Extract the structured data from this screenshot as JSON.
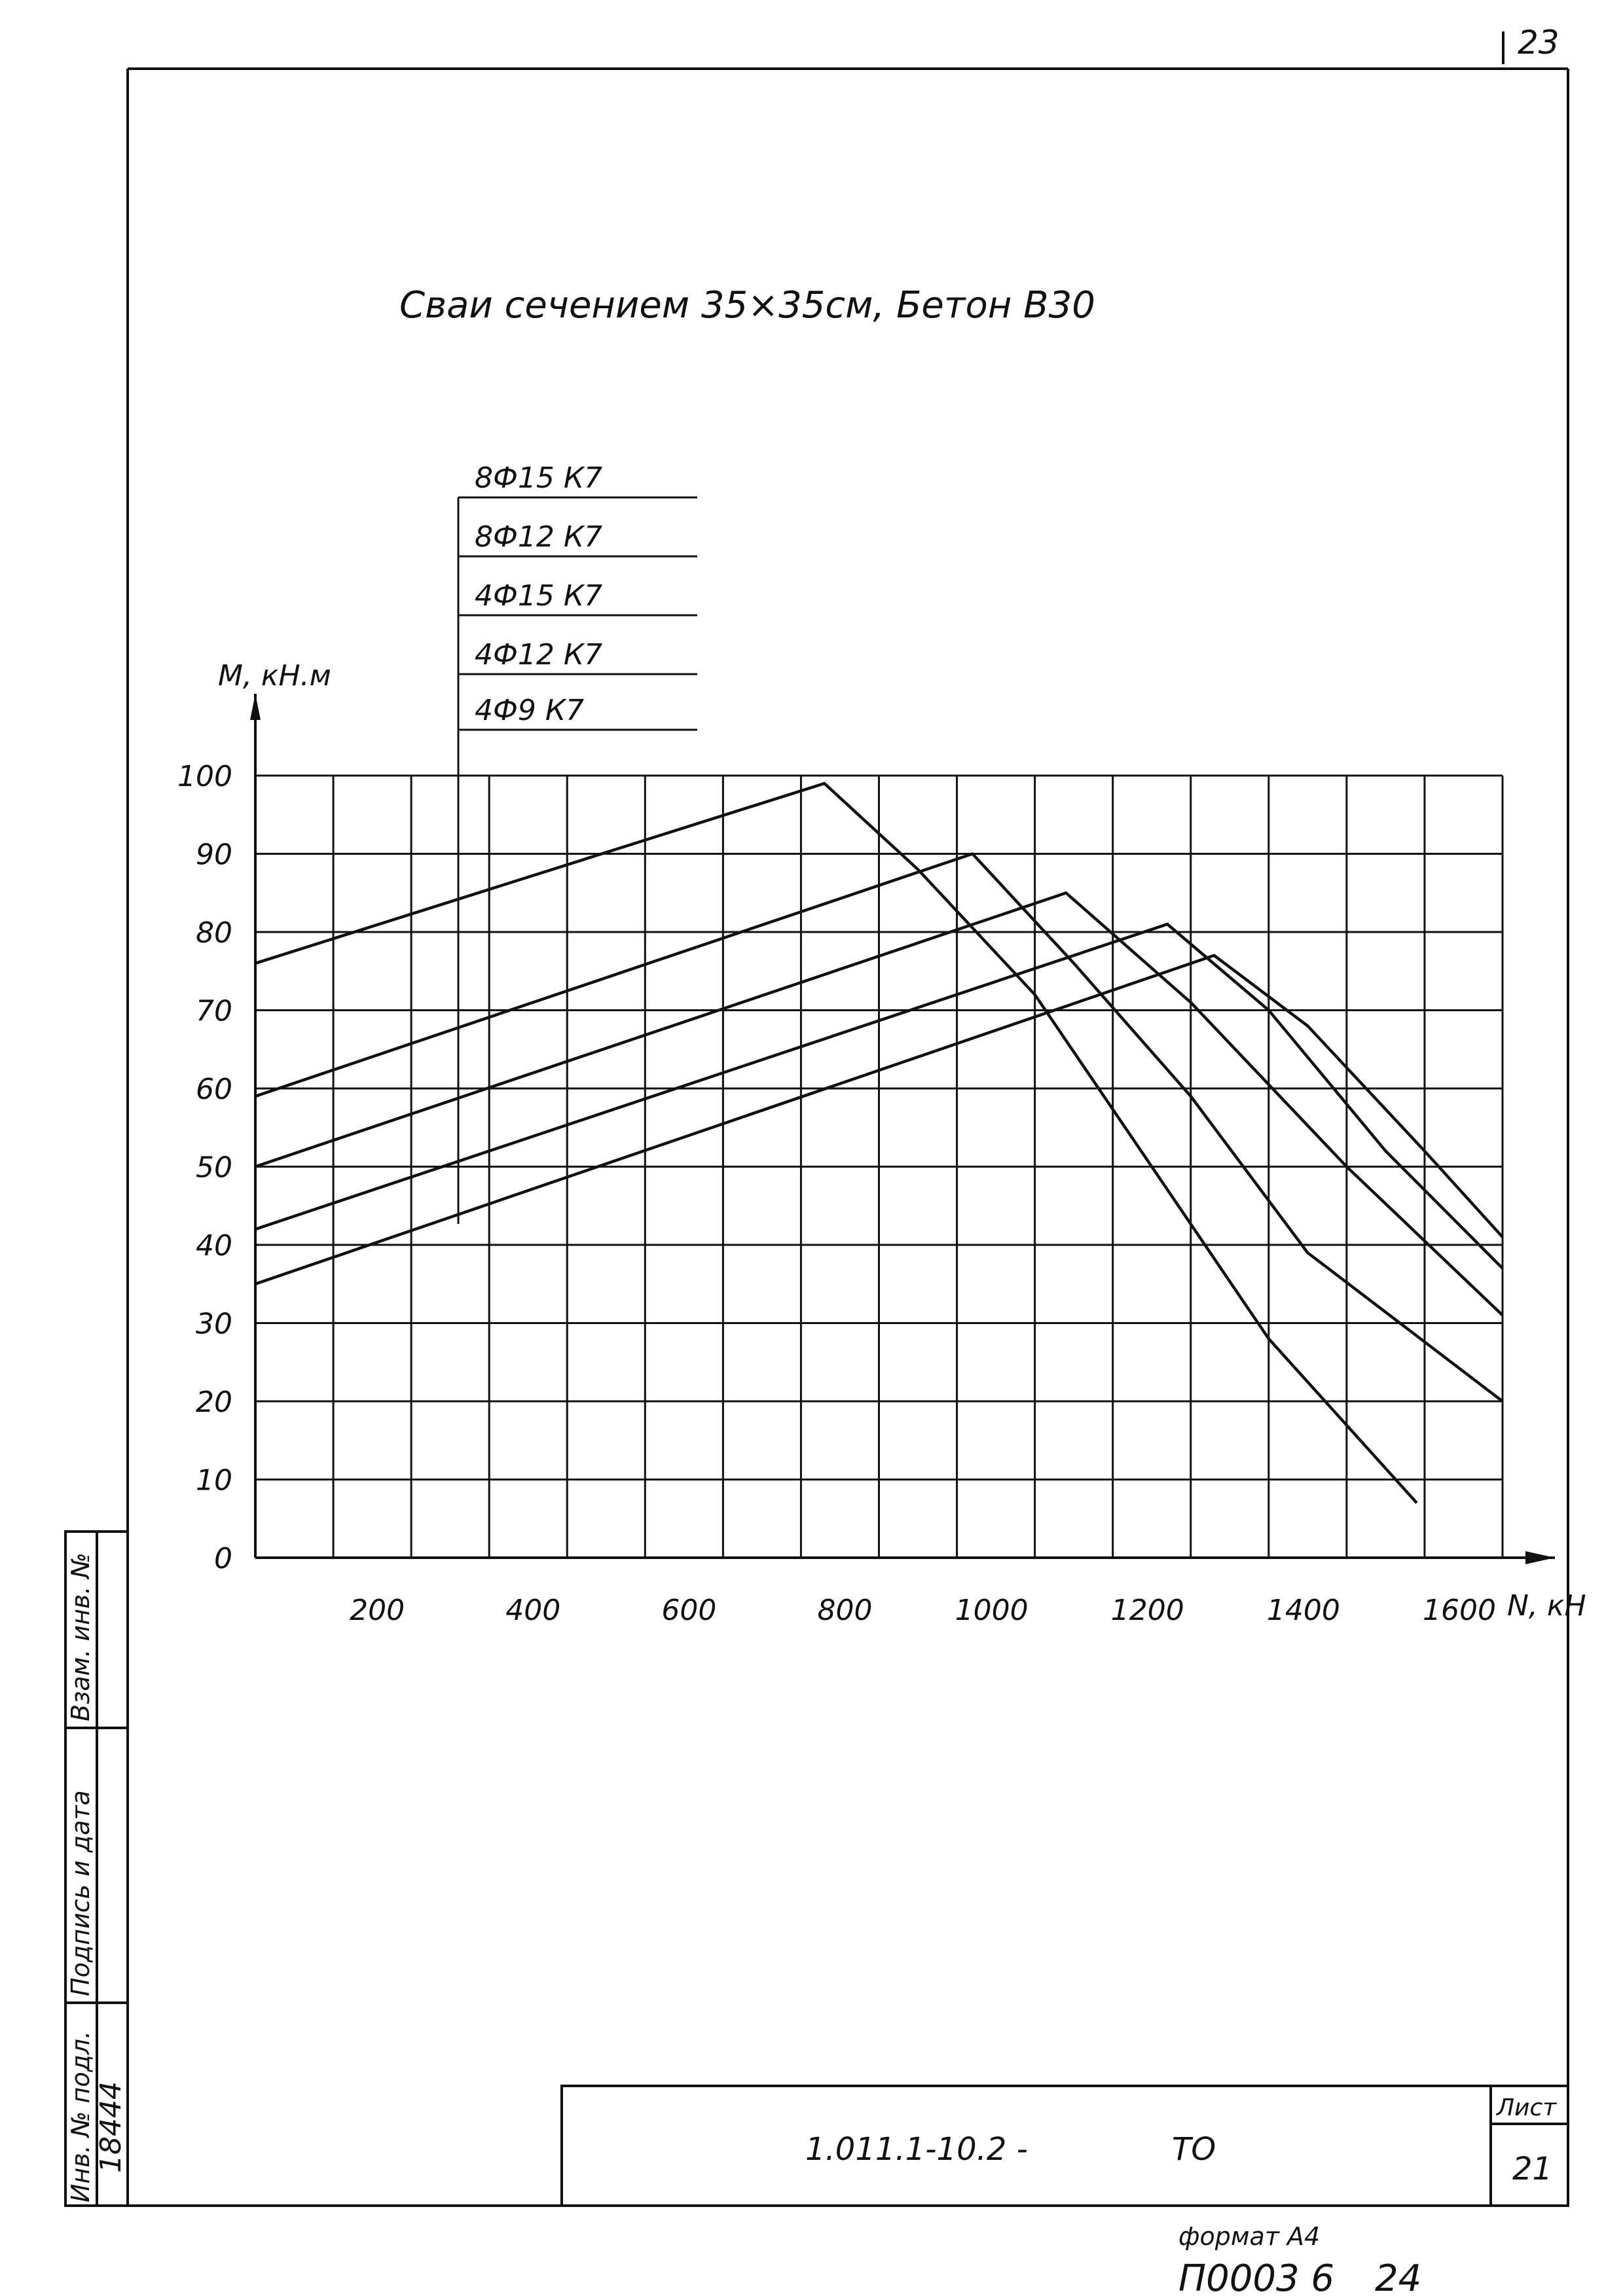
{
  "page": {
    "corner_number": "23",
    "title": "Сваи сечением 35×35см,  Бетон В30",
    "format_note": "формат А4",
    "archive_number": "П0003 6",
    "archive_sub": "24"
  },
  "stamp": {
    "designation": "1.011.1-10.2 -",
    "doc_code": "ТО",
    "sheet_label": "Лист",
    "sheet_number": "21"
  },
  "side_table": {
    "col1_header": "Инв. № подл.",
    "col1_value": "18444",
    "col2_header": "Подпись и дата",
    "col3_header": "Взам. инв. №"
  },
  "chart_data": {
    "type": "line",
    "title": "Сваи сечением 35×35см,  Бетон В30",
    "ylabel": "M, кН.м",
    "xlabel": "N, кН",
    "xlim": [
      0,
      1600
    ],
    "ylim": [
      0,
      100
    ],
    "x_ticks": [
      200,
      400,
      600,
      800,
      1000,
      1200,
      1400,
      1600
    ],
    "y_ticks": [
      0,
      10,
      20,
      30,
      40,
      50,
      60,
      70,
      80,
      90,
      100
    ],
    "x_tick_labels": [
      "200",
      "400",
      "600",
      "800",
      "1000",
      "1200",
      "1400",
      "1600"
    ],
    "y_tick_labels": [
      "0",
      "10",
      "20",
      "30",
      "40",
      "50",
      "60",
      "70",
      "80",
      "90",
      "100"
    ],
    "grid": true,
    "legend": [
      "8Ф15 К7",
      "8Ф12 К7",
      "4Ф15 К7",
      "4Ф12 К7",
      "4Ф9 К7"
    ],
    "series": [
      {
        "name": "8Ф15 К7",
        "points": [
          [
            0,
            76
          ],
          [
            730,
            99
          ],
          [
            850,
            88
          ],
          [
            1000,
            72
          ],
          [
            1150,
            50
          ],
          [
            1300,
            28
          ],
          [
            1490,
            7
          ]
        ]
      },
      {
        "name": "8Ф12 К7",
        "points": [
          [
            0,
            59
          ],
          [
            920,
            90
          ],
          [
            1050,
            76
          ],
          [
            1200,
            59
          ],
          [
            1350,
            39
          ],
          [
            1600,
            20
          ]
        ]
      },
      {
        "name": "4Ф15 К7",
        "points": [
          [
            0,
            50
          ],
          [
            1040,
            85
          ],
          [
            1200,
            71
          ],
          [
            1400,
            50
          ],
          [
            1600,
            31
          ]
        ]
      },
      {
        "name": "4Ф12 К7",
        "points": [
          [
            0,
            42
          ],
          [
            1170,
            81
          ],
          [
            1300,
            70
          ],
          [
            1450,
            52
          ],
          [
            1600,
            37
          ]
        ]
      },
      {
        "name": "4Ф9 К7",
        "points": [
          [
            0,
            35
          ],
          [
            1230,
            77
          ],
          [
            1350,
            68
          ],
          [
            1500,
            52
          ],
          [
            1600,
            41
          ]
        ]
      }
    ]
  }
}
